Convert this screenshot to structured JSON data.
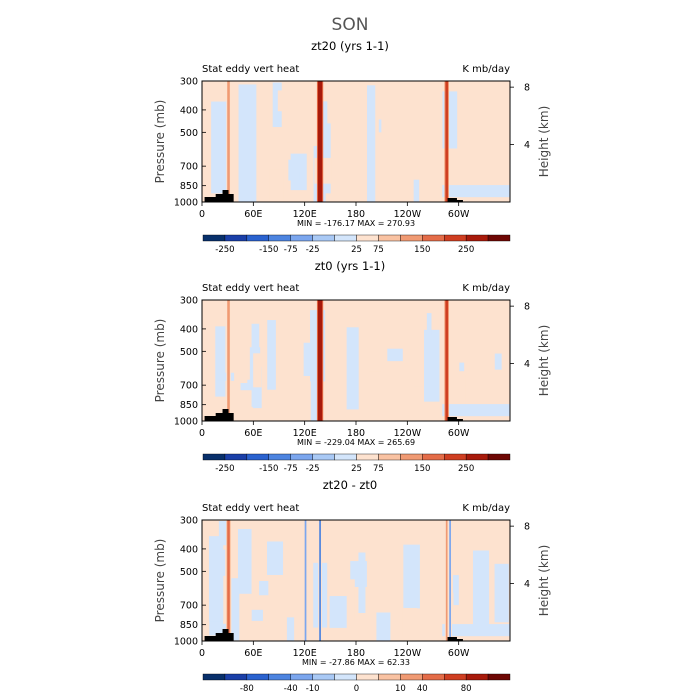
{
  "figure": {
    "title": "SON"
  },
  "colors": {
    "scale": [
      "#08306b",
      "#1a3fa8",
      "#2a62cf",
      "#4d84e0",
      "#7ba6ee",
      "#a9c9f5",
      "#d3e5fb",
      "#fde2cf",
      "#f9c2a2",
      "#f09a73",
      "#e46c48",
      "#cf3e21",
      "#a81a0b",
      "#6e0704"
    ],
    "background": "#ffffff",
    "topography": "#000000"
  },
  "chart_data": [
    {
      "type": "heatmap",
      "title": "zt20 (yrs 1-1)",
      "left_label": "Stat eddy vert heat",
      "right_label": "K mb/day",
      "ylabel": "Pressure (mb)",
      "ylabel_right": "Height (km)",
      "x_ticks": [
        "0",
        "60E",
        "120E",
        "180",
        "120W",
        "60W"
      ],
      "x_tick_values": [
        0,
        60,
        120,
        180,
        240,
        300
      ],
      "xlim": [
        0,
        360
      ],
      "y_ticks": [
        "300",
        "400",
        "500",
        "700",
        "850",
        "1000"
      ],
      "y_tick_values": [
        300,
        400,
        500,
        700,
        850,
        1000
      ],
      "ylim": [
        1000,
        300
      ],
      "yscale": "log",
      "y_right_ticks": [
        "8",
        "4"
      ],
      "y_right_tick_values": [
        8,
        4
      ],
      "stats": "MIN = -176.17   MAX = 270.93",
      "min": -176.17,
      "max": 270.93,
      "colorbar_labels": [
        "-250",
        "-150",
        "-75",
        "-25",
        "25",
        "75",
        "150",
        "250"
      ],
      "colorbar_levels": [
        -250,
        -150,
        -75,
        -25,
        25,
        75,
        150,
        250
      ],
      "features": [
        {
          "lon": 138,
          "width": 5,
          "level": 12
        },
        {
          "lon": 286,
          "width": 3,
          "level": 11
        },
        {
          "lon": 31,
          "width": 3,
          "level": 9
        }
      ]
    },
    {
      "type": "heatmap",
      "title": "zt0 (yrs 1-1)",
      "left_label": "Stat eddy vert heat",
      "right_label": "K mb/day",
      "ylabel": "Pressure (mb)",
      "ylabel_right": "Height (km)",
      "x_ticks": [
        "0",
        "60E",
        "120E",
        "180",
        "120W",
        "60W"
      ],
      "x_tick_values": [
        0,
        60,
        120,
        180,
        240,
        300
      ],
      "xlim": [
        0,
        360
      ],
      "y_ticks": [
        "300",
        "400",
        "500",
        "700",
        "850",
        "1000"
      ],
      "y_tick_values": [
        300,
        400,
        500,
        700,
        850,
        1000
      ],
      "ylim": [
        1000,
        300
      ],
      "yscale": "log",
      "y_right_ticks": [
        "8",
        "4"
      ],
      "y_right_tick_values": [
        8,
        4
      ],
      "stats": "MIN = -229.04   MAX = 265.69",
      "min": -229.04,
      "max": 265.69,
      "colorbar_labels": [
        "-250",
        "-150",
        "-75",
        "-25",
        "25",
        "75",
        "150",
        "250"
      ],
      "colorbar_levels": [
        -250,
        -150,
        -75,
        -25,
        25,
        75,
        150,
        250
      ],
      "features": [
        {
          "lon": 138,
          "width": 5,
          "level": 12
        },
        {
          "lon": 286,
          "width": 3,
          "level": 11
        },
        {
          "lon": 31,
          "width": 3,
          "level": 9
        }
      ]
    },
    {
      "type": "heatmap",
      "title": "zt20 - zt0",
      "left_label": "Stat eddy vert heat",
      "right_label": "K mb/day",
      "ylabel": "Pressure (mb)",
      "ylabel_right": "Height (km)",
      "x_ticks": [
        "0",
        "60E",
        "120E",
        "180",
        "120W",
        "60W"
      ],
      "x_tick_values": [
        0,
        60,
        120,
        180,
        240,
        300
      ],
      "xlim": [
        0,
        360
      ],
      "y_ticks": [
        "300",
        "400",
        "500",
        "700",
        "850",
        "1000"
      ],
      "y_tick_values": [
        300,
        400,
        500,
        700,
        850,
        1000
      ],
      "ylim": [
        1000,
        300
      ],
      "yscale": "log",
      "y_right_ticks": [
        "8",
        "4"
      ],
      "y_right_tick_values": [
        8,
        4
      ],
      "stats": "MIN = -27.86   MAX =  62.33",
      "min": -27.86,
      "max": 62.33,
      "colorbar_labels": [
        "-80",
        "-40",
        "-10",
        "0",
        "10",
        "40",
        "80"
      ],
      "colorbar_levels": [
        -80,
        -40,
        -10,
        0,
        10,
        40,
        80
      ],
      "features": [
        {
          "lon": 31,
          "width": 3,
          "level": 10
        },
        {
          "lon": 121,
          "width": 2,
          "level": 4
        },
        {
          "lon": 138,
          "width": 2,
          "level": 3
        },
        {
          "lon": 286,
          "width": 2,
          "level": 9
        },
        {
          "lon": 290,
          "width": 2,
          "level": 4
        }
      ]
    }
  ]
}
